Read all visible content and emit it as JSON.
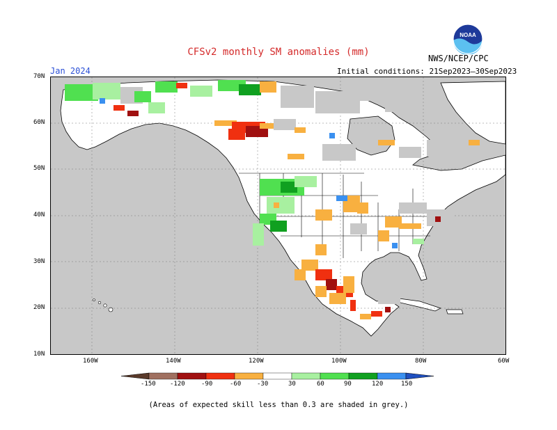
{
  "title": "CFSv2 monthly SM anomalies (mm)",
  "valid_month": "Jan 2024",
  "initial_conditions": "Initial conditions: 21Sep2023–30Sep2023",
  "agency": "NWS/NCEP/CPC",
  "logo_text": "NOAA",
  "footnote": "(Areas of expected skill less than 0.3 are shaded in grey.)",
  "latitude_labels": [
    "70N",
    "60N",
    "50N",
    "40N",
    "30N",
    "20N",
    "10N"
  ],
  "longitude_labels": [
    "160W",
    "140W",
    "120W",
    "100W",
    "80W",
    "60W"
  ],
  "colorbar": {
    "tick_labels": [
      "-150",
      "-120",
      "-90",
      "-60",
      "-30",
      "30",
      "60",
      "90",
      "120",
      "150"
    ],
    "bins": [
      {
        "range": "< -150",
        "color": "#5a3a2a"
      },
      {
        "range": "-150 to -120",
        "color": "#a07060"
      },
      {
        "range": "-120 to -90",
        "color": "#a01010"
      },
      {
        "range": "-90 to -60",
        "color": "#f03010"
      },
      {
        "range": "-60 to -30",
        "color": "#f8b040"
      },
      {
        "range": "-30 to 30",
        "color": "#ffffff"
      },
      {
        "range": "30 to 60",
        "color": "#a8f0a0"
      },
      {
        "range": "60 to 90",
        "color": "#50e050"
      },
      {
        "range": "90 to 120",
        "color": "#10a020"
      },
      {
        "range": "120 to 150",
        "color": "#3a90f0"
      },
      {
        "range": "> 150",
        "color": "#2050c0"
      }
    ]
  },
  "map": {
    "ocean_color": "#c8c8c8",
    "low_skill_color": "#c8c8c8",
    "grid_extent": {
      "lon": [
        "170W",
        "60W"
      ],
      "lat": [
        "10N",
        "70N"
      ]
    }
  }
}
